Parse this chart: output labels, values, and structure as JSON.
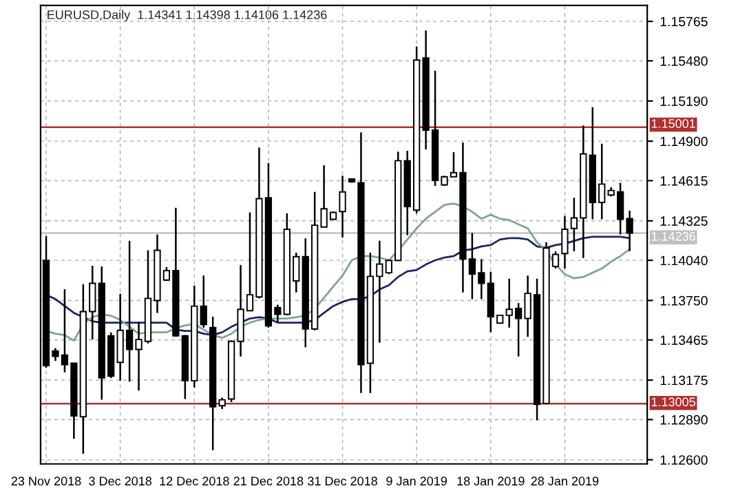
{
  "chart_data": {
    "type": "candlestick",
    "title": "EURUSD,Daily  1.14341 1.14398 1.14106 1.14236",
    "categories": [
      "23 Nov 2018",
      null,
      null,
      null,
      null,
      null,
      null,
      null,
      "3 Dec 2018",
      null,
      null,
      null,
      null,
      null,
      null,
      null,
      "12 Dec 2018",
      null,
      null,
      null,
      null,
      null,
      null,
      null,
      "21 Dec 2018",
      null,
      null,
      null,
      null,
      null,
      null,
      null,
      "31 Dec 2018",
      null,
      null,
      null,
      null,
      null,
      null,
      null,
      "9 Jan 2019",
      null,
      null,
      null,
      null,
      null,
      null,
      null,
      "18 Jan 2019",
      null,
      null,
      null,
      null,
      null,
      null,
      null,
      "28 Jan 2019",
      null,
      null,
      null,
      null,
      null,
      null,
      null
    ],
    "ohlc": [
      [
        1.14039,
        1.14214,
        1.13264,
        1.1328
      ],
      [
        1.13386,
        1.13406,
        1.13313,
        1.13346
      ],
      [
        1.13356,
        1.13831,
        1.13231,
        1.13287
      ],
      [
        1.13297,
        1.13297,
        1.12752,
        1.12917
      ],
      [
        1.12911,
        1.13868,
        1.12643,
        1.1367
      ],
      [
        1.1367,
        1.14,
        1.13468,
        1.13874
      ],
      [
        1.13874,
        1.13996,
        1.13033,
        1.13191
      ],
      [
        1.13495,
        1.1352,
        1.1319,
        1.13204
      ],
      [
        1.13303,
        1.13798,
        1.13171,
        1.13534
      ],
      [
        1.13534,
        1.14181,
        1.13164,
        1.13396
      ],
      [
        1.13396,
        1.13594,
        1.13099,
        1.13468
      ],
      [
        1.13455,
        1.14112,
        1.1344,
        1.13765
      ],
      [
        1.13749,
        1.14227,
        1.1366,
        1.14112
      ],
      [
        1.13897,
        1.1399,
        1.13891,
        1.13966
      ],
      [
        1.13966,
        1.14419,
        1.1349,
        1.13495
      ],
      [
        1.13495,
        1.135,
        1.13039,
        1.13171
      ],
      [
        1.13171,
        1.13857,
        1.13122,
        1.13709
      ],
      [
        1.13709,
        1.1393,
        1.13554,
        1.13577
      ],
      [
        1.13554,
        1.13633,
        1.1267,
        1.12983
      ],
      [
        1.1299,
        1.13049,
        1.12967,
        1.13033
      ],
      [
        1.13039,
        1.13462,
        1.13016,
        1.13455
      ],
      [
        1.13455,
        1.14006,
        1.13346,
        1.13686
      ],
      [
        1.13676,
        1.14386,
        1.13676,
        1.13791
      ],
      [
        1.13775,
        1.14854,
        1.13765,
        1.14485
      ],
      [
        1.14491,
        1.14742,
        1.13554,
        1.13567
      ],
      [
        1.13699,
        1.13719,
        1.13594,
        1.1365
      ],
      [
        1.1365,
        1.14379,
        1.13643,
        1.14264
      ],
      [
        1.13891,
        1.14095,
        1.13808,
        1.14066
      ],
      [
        1.14066,
        1.14198,
        1.13412,
        1.13544
      ],
      [
        1.13544,
        1.14534,
        1.13534,
        1.14293
      ],
      [
        1.1428,
        1.14726,
        1.1428,
        1.14412
      ],
      [
        1.14336,
        1.14392,
        1.1433,
        1.14386
      ],
      [
        1.14392,
        1.1465,
        1.14204,
        1.14534
      ],
      [
        1.14627,
        1.1463,
        1.146,
        1.14607
      ],
      [
        1.146,
        1.14963,
        1.13082,
        1.13287
      ],
      [
        1.13297,
        1.14095,
        1.13082,
        1.13924
      ],
      [
        1.13924,
        1.14181,
        1.13445,
        1.14013
      ],
      [
        1.1395,
        1.14043,
        1.1394,
        1.14039
      ],
      [
        1.14039,
        1.14824,
        1.14039,
        1.14759
      ],
      [
        1.14759,
        1.14831,
        1.14221,
        1.14428
      ],
      [
        1.14402,
        1.15584,
        1.14379,
        1.15485
      ],
      [
        1.15501,
        1.15699,
        1.14841,
        1.1498
      ],
      [
        1.1498,
        1.15409,
        1.14577,
        1.14617
      ],
      [
        1.14584,
        1.1465,
        1.14577,
        1.14643
      ],
      [
        1.14643,
        1.14821,
        1.14643,
        1.14673
      ],
      [
        1.14673,
        1.1489,
        1.13808,
        1.14049
      ],
      [
        1.14049,
        1.14237,
        1.13759,
        1.1394
      ],
      [
        1.1395,
        1.14049,
        1.13759,
        1.13874
      ],
      [
        1.13874,
        1.13957,
        1.13521,
        1.13633
      ],
      [
        1.13587,
        1.13643,
        1.13587,
        1.13643
      ],
      [
        1.13643,
        1.13907,
        1.13554,
        1.13686
      ],
      [
        1.13692,
        1.13732,
        1.13346,
        1.1362
      ],
      [
        1.1362,
        1.1393,
        1.13488,
        1.13801
      ],
      [
        1.13791,
        1.13907,
        1.12884,
        1.13
      ],
      [
        1.13006,
        1.14171,
        1.13,
        1.14128
      ],
      [
        1.13996,
        1.14105,
        1.1398,
        1.14082
      ],
      [
        1.14089,
        1.14359,
        1.1398,
        1.14264
      ],
      [
        1.1427,
        1.14491,
        1.14105,
        1.14346
      ],
      [
        1.14346,
        1.15013,
        1.14056,
        1.14808
      ],
      [
        1.14798,
        1.15145,
        1.14336,
        1.14458
      ],
      [
        1.14458,
        1.14881,
        1.14336,
        1.1459
      ],
      [
        1.14511,
        1.14567,
        1.14501,
        1.14544
      ],
      [
        1.14534,
        1.146,
        1.14227,
        1.14336
      ],
      [
        1.14341,
        1.14398,
        1.14106,
        1.14236
      ]
    ],
    "series": [
      {
        "type": "line",
        "color": "#1c2466",
        "values": [
          1.1379,
          1.1376,
          1.1371,
          1.1366,
          1.1363,
          1.136,
          1.1359,
          1.1359,
          1.1359,
          1.1359,
          1.1359,
          1.1359,
          1.1359,
          1.1359,
          1.1354,
          1.1353,
          1.1353,
          1.1351,
          1.135,
          1.1352,
          1.1356,
          1.1359,
          1.1362,
          1.1363,
          1.1362,
          1.1359,
          1.1359,
          1.1359,
          1.1359,
          1.1361,
          1.1366,
          1.1371,
          1.1374,
          1.1376,
          1.1376,
          1.1378,
          1.1383,
          1.1386,
          1.1392,
          1.1396,
          1.1397,
          1.1401,
          1.1404,
          1.1406,
          1.1407,
          1.1411,
          1.1412,
          1.1414,
          1.1415,
          1.1419,
          1.142,
          1.142,
          1.1419,
          1.1414,
          1.1413,
          1.1415,
          1.1416,
          1.1418,
          1.142,
          1.1421,
          1.1421,
          1.1421,
          1.1421,
          1.142
        ]
      },
      {
        "type": "line",
        "color": "#7fa597",
        "values": [
          1.1353,
          1.1351,
          1.135,
          1.1346,
          1.1358,
          1.1363,
          1.1365,
          1.1364,
          1.1361,
          1.1356,
          1.1351,
          1.1352,
          1.1352,
          1.1352,
          1.1355,
          1.1357,
          1.1358,
          1.1354,
          1.135,
          1.1348,
          1.1351,
          1.1356,
          1.1359,
          1.1361,
          1.1362,
          1.1362,
          1.1362,
          1.1363,
          1.1364,
          1.1369,
          1.1377,
          1.1385,
          1.1393,
          1.1404,
          1.1407,
          1.1407,
          1.1406,
          1.1404,
          1.1411,
          1.1419,
          1.1427,
          1.1434,
          1.1439,
          1.1444,
          1.1445,
          1.1443,
          1.1439,
          1.1434,
          1.1437,
          1.1434,
          1.1433,
          1.143,
          1.1427,
          1.1417,
          1.1411,
          1.1401,
          1.1394,
          1.1391,
          1.1392,
          1.1395,
          1.1398,
          1.1403,
          1.1407,
          1.1412
        ]
      }
    ],
    "ylim": [
      1.1257,
      1.1588
    ],
    "yticks": [
      {
        "value": 1.15765,
        "label": "1.15765"
      },
      {
        "value": 1.1548,
        "label": "1.15480"
      },
      {
        "value": 1.1519,
        "label": "1.15190"
      },
      {
        "value": 1.149,
        "label": "1.14900"
      },
      {
        "value": 1.14615,
        "label": "1.14615"
      },
      {
        "value": 1.14325,
        "label": "1.14325"
      },
      {
        "value": 1.1404,
        "label": "1.14040"
      },
      {
        "value": 1.1375,
        "label": "1.13750"
      },
      {
        "value": 1.13465,
        "label": "1.13465"
      },
      {
        "value": 1.13175,
        "label": "1.13175"
      },
      {
        "value": 1.1289,
        "label": "1.12890"
      },
      {
        "value": 1.126,
        "label": "1.12600"
      }
    ],
    "ref_lines": [
      {
        "axis": "y",
        "value": 1.15001,
        "label": "1.15001",
        "color": "#b03030"
      },
      {
        "axis": "y",
        "value": 1.13005,
        "label": "1.13005",
        "color": "#b03030"
      },
      {
        "axis": "y",
        "value": 1.14236,
        "label": "1.14236",
        "color": "#c0c0c0"
      }
    ],
    "grid": true
  }
}
